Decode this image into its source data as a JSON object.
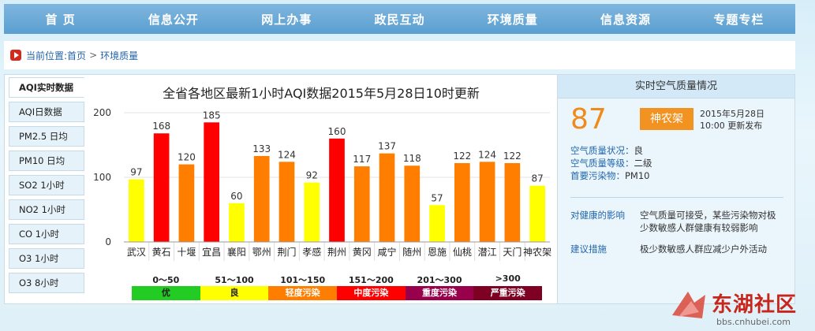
{
  "nav": [
    "首 页",
    "信息公开",
    "网上办事",
    "政民互动",
    "环境质量",
    "信息资源",
    "专题专栏"
  ],
  "breadcrumb": {
    "prefix": "当前位置:",
    "home": "首页",
    "sep": ">",
    "current": "环境质量"
  },
  "tabs": [
    "AQI实时数据",
    "AQI日数据",
    "PM2.5 日均",
    "PM10 日均",
    "SO2 1小时",
    "NO2 1小时",
    "CO 1小时",
    "O3 1小时",
    "O3 8小时"
  ],
  "chart_data": {
    "type": "bar",
    "title": "全省各地区最新1小时AQI数据2015年5月28日10时更新",
    "categories": [
      "武汉",
      "黄石",
      "十堰",
      "宜昌",
      "襄阳",
      "鄂州",
      "荆门",
      "孝感",
      "荆州",
      "黄冈",
      "咸宁",
      "随州",
      "恩施",
      "仙桃",
      "潜江",
      "天门",
      "神农架"
    ],
    "values": [
      97,
      168,
      120,
      185,
      60,
      133,
      124,
      92,
      160,
      117,
      137,
      118,
      57,
      122,
      124,
      122,
      87
    ],
    "value_labels": [
      "97",
      "168",
      "120",
      "185",
      "60",
      "133",
      "124",
      "92",
      "160",
      "117",
      "137",
      "118",
      "57",
      "122",
      "124",
      "122",
      "87"
    ],
    "ylim": [
      0,
      200
    ],
    "yticks": [
      "0",
      "100",
      "200"
    ],
    "colors": [
      "#ffff00",
      "#ff0000",
      "#ff7e00",
      "#ff0000",
      "#ffff00",
      "#ff7e00",
      "#ff7e00",
      "#ffff00",
      "#ff0000",
      "#ff7e00",
      "#ff7e00",
      "#ff7e00",
      "#ffff00",
      "#ff7e00",
      "#ff7e00",
      "#ff7e00",
      "#ffff00"
    ],
    "grid": true
  },
  "legend": [
    {
      "range": "0～50",
      "label": "优",
      "color": "#22cc22",
      "text_color": "#222"
    },
    {
      "range": "51～100",
      "label": "良",
      "color": "#ffff00",
      "text_color": "#222"
    },
    {
      "range": "101～150",
      "label": "轻度污染",
      "color": "#ff7e00",
      "text_color": "#fff"
    },
    {
      "range": "151～200",
      "label": "中度污染",
      "color": "#ff0000",
      "text_color": "#fff"
    },
    {
      "range": "201～300",
      "label": "重度污染",
      "color": "#99004c",
      "text_color": "#fff"
    },
    {
      "range": ">300",
      "label": "严重污染",
      "color": "#7e0023",
      "text_color": "#fff"
    }
  ],
  "panel": {
    "header": "实时空气质量情况",
    "aqi": "87",
    "station": "神农架",
    "date": "2015年5月28日",
    "time": "10:00 更新发布",
    "status_label": "空气质量状况：",
    "status_value": "良",
    "level_label": "空气质量等级：",
    "level_value": "二级",
    "primary_label": "首要污染物：",
    "primary_value": "PM10",
    "health_key": "对健康的影响",
    "health_value": "空气质量可接受，某些污染物对极少数敏感人群健康有较弱影响",
    "advice_key": "建议措施",
    "advice_value": "极少数敏感人群应减少户外活动"
  },
  "watermark": {
    "text": "东湖社区",
    "url": "bbs.cnhubei.com"
  }
}
